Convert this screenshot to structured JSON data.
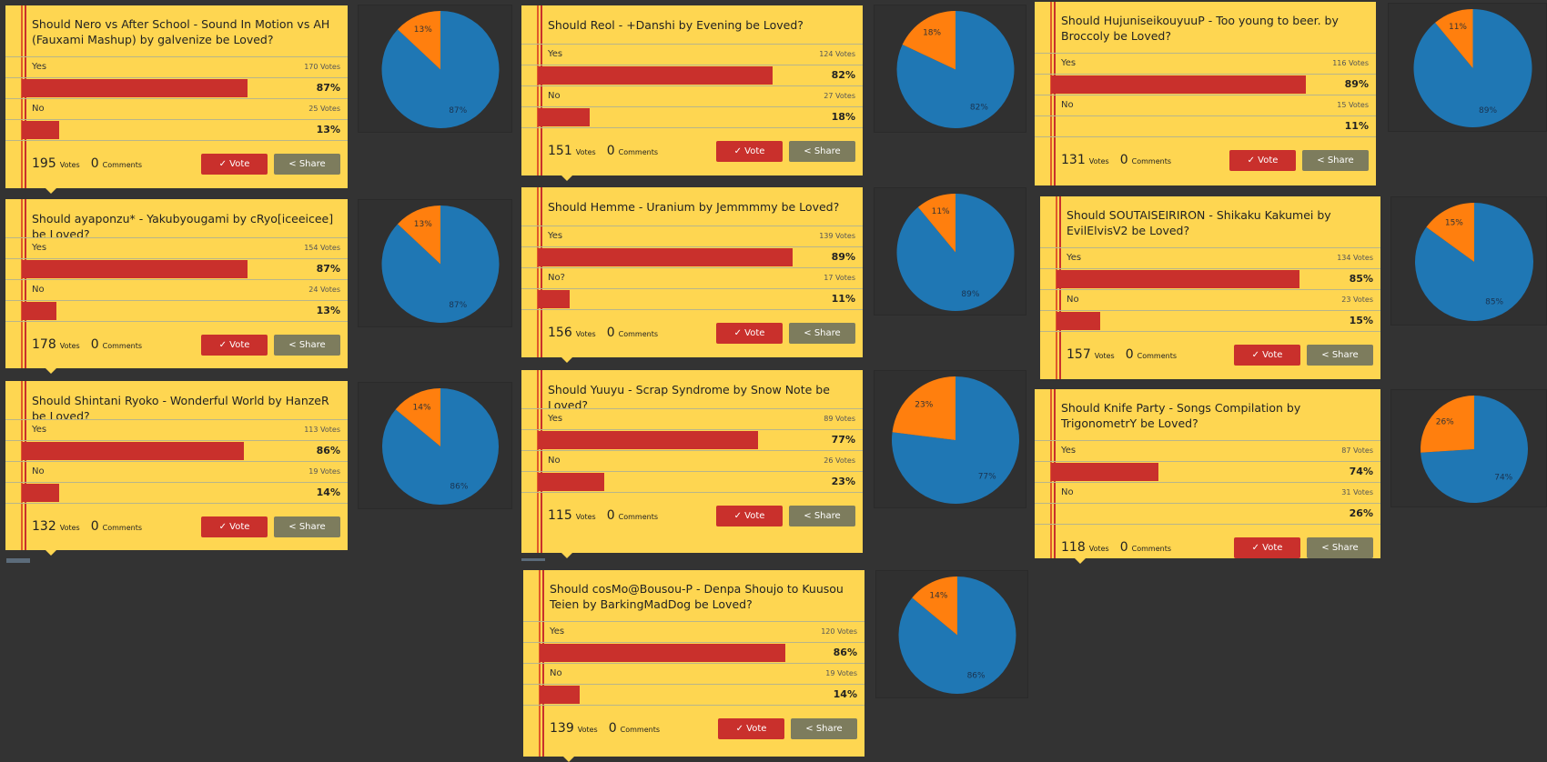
{
  "labels": {
    "votes": "Votes",
    "comments": "Comments",
    "vote_button": "✓ Vote",
    "share_button": "< Share"
  },
  "colors": {
    "card_bg": "#fed651",
    "bar": "#c9302c",
    "vote_button": "#c9302c",
    "share_button": "#7d7c5d",
    "pie_yes": "#1f77b4",
    "pie_no": "#ff7f0e",
    "page_bg": "#333333"
  },
  "polls": [
    {
      "title": "Should Nero vs After School - Sound In Motion vs AH (Fauxami Mashup) by galvenize be Loved?",
      "options": [
        {
          "label": "Yes",
          "votes": "170 Votes",
          "pct": "87%"
        },
        {
          "label": "No",
          "votes": "25 Votes",
          "pct": "13%"
        }
      ],
      "total_votes": "195",
      "comments": "0",
      "pie": {
        "yes": "87%",
        "no": "13%"
      }
    },
    {
      "title": "Should ayaponzu* - Yakubyougami by cRyo[iceeicee] be Loved?",
      "options": [
        {
          "label": "Yes",
          "votes": "154 Votes",
          "pct": "87%"
        },
        {
          "label": "No",
          "votes": "24 Votes",
          "pct": "13%"
        }
      ],
      "total_votes": "178",
      "comments": "0",
      "pie": {
        "yes": "87%",
        "no": "13%"
      }
    },
    {
      "title": "Should Shintani Ryoko - Wonderful World by HanzeR be Loved?",
      "options": [
        {
          "label": "Yes",
          "votes": "113 Votes",
          "pct": "86%"
        },
        {
          "label": "No",
          "votes": "19 Votes",
          "pct": "14%"
        }
      ],
      "total_votes": "132",
      "comments": "0",
      "pie": {
        "yes": "86%",
        "no": "14%"
      }
    },
    {
      "title": "Should Reol - +Danshi by Evening be Loved?",
      "options": [
        {
          "label": "Yes",
          "votes": "124 Votes",
          "pct": "82%"
        },
        {
          "label": "No",
          "votes": "27 Votes",
          "pct": "18%"
        }
      ],
      "total_votes": "151",
      "comments": "0",
      "pie": {
        "yes": "82%",
        "no": "18%"
      }
    },
    {
      "title": "Should Hemme - Uranium by Jemmmmy be Loved?",
      "options": [
        {
          "label": "Yes",
          "votes": "139 Votes",
          "pct": "89%"
        },
        {
          "label": "No?",
          "votes": "17 Votes",
          "pct": "11%"
        }
      ],
      "total_votes": "156",
      "comments": "0",
      "pie": {
        "yes": "89%",
        "no": "11%"
      }
    },
    {
      "title": "Should Yuuyu - Scrap Syndrome by Snow Note be Loved?",
      "options": [
        {
          "label": "Yes",
          "votes": "89 Votes",
          "pct": "77%"
        },
        {
          "label": "No",
          "votes": "26 Votes",
          "pct": "23%"
        }
      ],
      "total_votes": "115",
      "comments": "0",
      "pie": {
        "yes": "77%",
        "no": "23%"
      }
    },
    {
      "title": "Should cosMo@Bousou-P - Denpa Shoujo to Kuusou Teien by BarkingMadDog be Loved?",
      "options": [
        {
          "label": "Yes",
          "votes": "120 Votes",
          "pct": "86%"
        },
        {
          "label": "No",
          "votes": "19 Votes",
          "pct": "14%"
        }
      ],
      "total_votes": "139",
      "comments": "0",
      "pie": {
        "yes": "86%",
        "no": "14%"
      }
    },
    {
      "title": "Should HujuniseikouyuuP - Too young to beer. by Broccoly be Loved?",
      "options": [
        {
          "label": "Yes",
          "votes": "116 Votes",
          "pct": "89%"
        },
        {
          "label": "No",
          "votes": "15 Votes",
          "pct": "11%"
        }
      ],
      "total_votes": "131",
      "comments": "0",
      "pie": {
        "yes": "89%",
        "no": "11%"
      }
    },
    {
      "title": "Should SOUTAISEIRIRON - Shikaku Kakumei by EvilElvisV2 be Loved?",
      "options": [
        {
          "label": "Yes",
          "votes": "134 Votes",
          "pct": "85%"
        },
        {
          "label": "No",
          "votes": "23 Votes",
          "pct": "15%"
        }
      ],
      "total_votes": "157",
      "comments": "0",
      "pie": {
        "yes": "85%",
        "no": "15%"
      }
    },
    {
      "title": "Should Knife Party - Songs Compilation by TrigonometrY be Loved?",
      "options": [
        {
          "label": "Yes",
          "votes": "87 Votes",
          "pct": "74%"
        },
        {
          "label": "No",
          "votes": "31 Votes",
          "pct": "26%"
        }
      ],
      "total_votes": "118",
      "comments": "0",
      "pie": {
        "yes": "74%",
        "no": "26%"
      }
    }
  ]
}
